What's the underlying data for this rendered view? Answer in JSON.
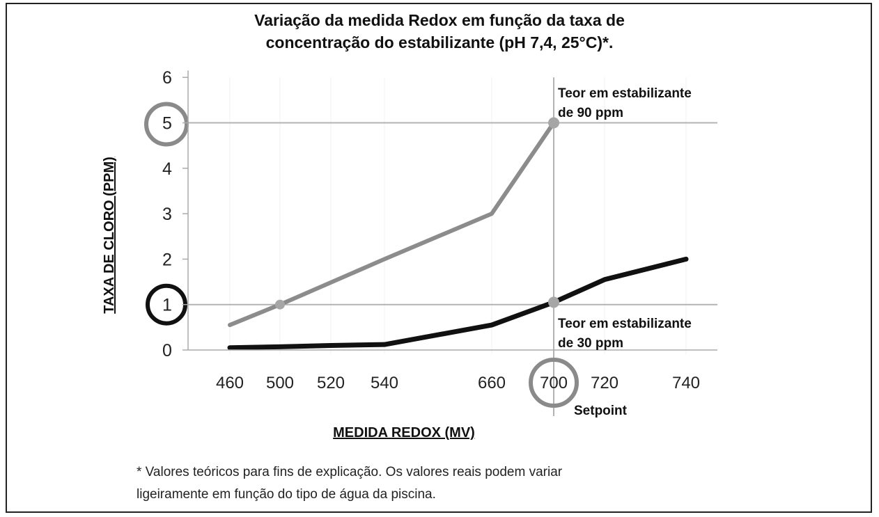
{
  "chart_data": {
    "type": "line",
    "title": [
      "Variação da medida Redox em função da taxa de",
      "concentração do estabilizante (pH 7,4, 25°C)*."
    ],
    "xlabel": "MEDIDA REDOX (MV)",
    "ylabel": "TAXA DE CLORO (PPM)",
    "categories": [
      "460",
      "500",
      "520",
      "540",
      "660",
      "700",
      "720",
      "740"
    ],
    "ylim": [
      0,
      6
    ],
    "yticks": [
      "0",
      "1",
      "2",
      "3",
      "4",
      "5",
      "6"
    ],
    "series": [
      {
        "name": "Teor em estabilizante de 90 ppm",
        "values": [
          0.55,
          1.0,
          null,
          2.0,
          3.0,
          5.0,
          null,
          null
        ],
        "color": "#8c8c8c"
      },
      {
        "name": "Teor em estabilizante de 30 ppm",
        "values": [
          0.05,
          0.07,
          0.1,
          0.12,
          0.55,
          1.05,
          1.55,
          2.0
        ],
        "color": "#111111"
      }
    ],
    "annotations": {
      "label_90": [
        "Teor em estabilizante",
        "de 90 ppm"
      ],
      "label_30": [
        "Teor em estabilizante",
        "de 30 ppm"
      ],
      "setpoint": "Setpoint"
    },
    "reference_lines": {
      "y": [
        5,
        1
      ],
      "x": "700"
    },
    "highlight_circles": {
      "y": [
        "5",
        "1"
      ],
      "x": "700"
    }
  },
  "footnote": [
    "* Valores teóricos para fins de explicação. Os valores reais podem variar",
    "ligeiramente em função do tipo de água da piscina."
  ]
}
